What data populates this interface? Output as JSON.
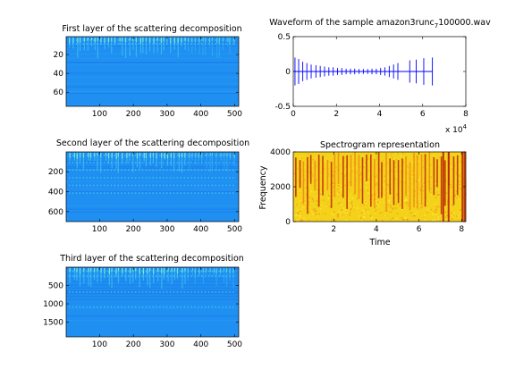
{
  "chart_data": [
    {
      "id": "layer1",
      "type": "heatmap",
      "title": "First layer of the scattering decomposition",
      "xlabel": "",
      "ylabel": "",
      "xlim": [
        1,
        512
      ],
      "ylim": [
        75,
        1
      ],
      "xticks": [
        "100",
        "200",
        "300",
        "400",
        "500"
      ],
      "xtick_values": [
        100,
        200,
        300,
        400,
        500
      ],
      "yticks": [
        "20",
        "40",
        "60"
      ],
      "ytick_values": [
        20,
        40,
        60
      ],
      "colormap": "jet",
      "colors": {
        "background": "#1f8ff2",
        "dark": "#1876e6",
        "bright": "#4dd6ee",
        "hot": "#8ef0c8"
      },
      "y_reversed": true
    },
    {
      "id": "waveform",
      "type": "line",
      "title": "Waveform of the sample amazon3runc_7100000.wav",
      "title_main": "Waveform of the sample amazon3runc",
      "title_sub": "7",
      "title_tail": "100000.wav",
      "xlabel": "",
      "ylabel": "",
      "xlim": [
        0,
        80000
      ],
      "ylim": [
        -0.5,
        0.5
      ],
      "xticks": [
        "0",
        "2",
        "4",
        "6",
        "8"
      ],
      "xtick_values": [
        0,
        20000,
        40000,
        60000,
        80000
      ],
      "yticks": [
        "-0.5",
        "0",
        "0.5"
      ],
      "ytick_values": [
        -0.5,
        0,
        0.5
      ],
      "x_multiplier_base": "x 10",
      "x_multiplier_exp": "4",
      "series_color": "#0000ff",
      "pulses": [
        {
          "x": 800,
          "amp": 0.2
        },
        {
          "x": 2500,
          "amp": 0.18
        },
        {
          "x": 4400,
          "amp": 0.14
        },
        {
          "x": 6300,
          "amp": 0.12
        },
        {
          "x": 8300,
          "amp": 0.1
        },
        {
          "x": 10500,
          "amp": 0.09
        },
        {
          "x": 12500,
          "amp": 0.08
        },
        {
          "x": 14500,
          "amp": 0.07
        },
        {
          "x": 16500,
          "amp": 0.06
        },
        {
          "x": 18500,
          "amp": 0.06
        },
        {
          "x": 20500,
          "amp": 0.05
        },
        {
          "x": 22500,
          "amp": 0.05
        },
        {
          "x": 24500,
          "amp": 0.04
        },
        {
          "x": 26500,
          "amp": 0.04
        },
        {
          "x": 28500,
          "amp": 0.04
        },
        {
          "x": 30500,
          "amp": 0.035
        },
        {
          "x": 32500,
          "amp": 0.035
        },
        {
          "x": 34500,
          "amp": 0.035
        },
        {
          "x": 36500,
          "amp": 0.04
        },
        {
          "x": 38500,
          "amp": 0.04
        },
        {
          "x": 40500,
          "amp": 0.05
        },
        {
          "x": 42500,
          "amp": 0.06
        },
        {
          "x": 44500,
          "amp": 0.08
        },
        {
          "x": 46500,
          "amp": 0.1
        },
        {
          "x": 48500,
          "amp": 0.12
        },
        {
          "x": 54000,
          "amp": 0.16
        },
        {
          "x": 57000,
          "amp": 0.17
        },
        {
          "x": 60500,
          "amp": 0.19
        },
        {
          "x": 64500,
          "amp": 0.2
        }
      ],
      "signal_end": 64500
    },
    {
      "id": "layer2",
      "type": "heatmap",
      "title": "Second layer of the scattering decomposition",
      "xlabel": "",
      "ylabel": "",
      "xlim": [
        1,
        512
      ],
      "ylim": [
        700,
        1
      ],
      "xticks": [
        "100",
        "200",
        "300",
        "400",
        "500"
      ],
      "xtick_values": [
        100,
        200,
        300,
        400,
        500
      ],
      "yticks": [
        "200",
        "400",
        "600"
      ],
      "ytick_values": [
        200,
        400,
        600
      ],
      "colormap": "jet",
      "colors": {
        "background": "#1f8ff2",
        "dark": "#1876e6",
        "bright": "#4dd6ee",
        "hot": "#8ef0c8"
      },
      "y_reversed": true
    },
    {
      "id": "spectrogram",
      "type": "heatmap",
      "title": "Spectrogram representation",
      "xlabel": "Time",
      "ylabel": "Frequency",
      "xlim": [
        0.1,
        8.2
      ],
      "ylim": [
        0,
        4000
      ],
      "xticks": [
        "2",
        "4",
        "6",
        "8"
      ],
      "xtick_values": [
        2,
        4,
        6,
        8
      ],
      "yticks": [
        "0",
        "2000",
        "4000"
      ],
      "ytick_values": [
        0,
        2000,
        4000
      ],
      "colormap": "hot",
      "colors": {
        "background": "#f5d21a",
        "light": "#f8ee4a",
        "mid": "#ee8a16",
        "dark": "#b8260a"
      }
    },
    {
      "id": "layer3",
      "type": "heatmap",
      "title": "Third layer of the scattering decomposition",
      "xlabel": "",
      "ylabel": "",
      "xlim": [
        1,
        512
      ],
      "ylim": [
        1900,
        1
      ],
      "xticks": [
        "100",
        "200",
        "300",
        "400",
        "500"
      ],
      "xtick_values": [
        100,
        200,
        300,
        400,
        500
      ],
      "yticks": [
        "500",
        "1000",
        "1500"
      ],
      "ytick_values": [
        500,
        1000,
        1500
      ],
      "colormap": "jet",
      "colors": {
        "background": "#1f8ff2",
        "dark": "#1876e6",
        "bright": "#4dd6ee",
        "hot": "#8ef0c8"
      },
      "y_reversed": true
    }
  ]
}
